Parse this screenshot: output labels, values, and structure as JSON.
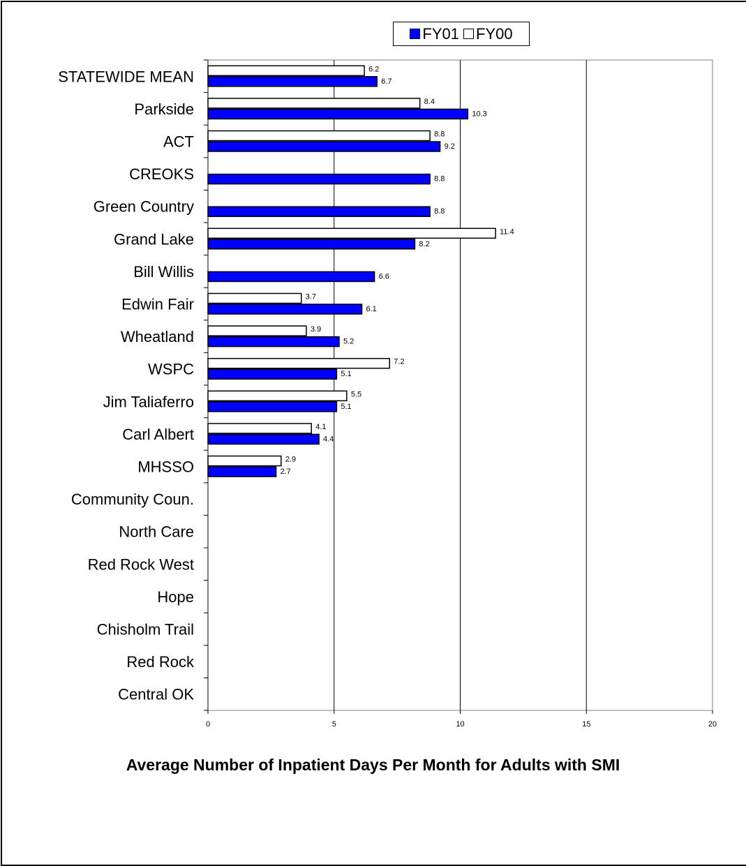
{
  "chart_data": {
    "type": "bar",
    "orientation": "horizontal",
    "title": "Average Number of Inpatient Days Per Month for Adults with SMI",
    "categories": [
      "STATEWIDE MEAN",
      "Parkside",
      "ACT",
      "CREOKS",
      "Green Country",
      "Grand Lake",
      "Bill Willis",
      "Edwin Fair",
      "Wheatland",
      "WSPC",
      "Jim Taliaferro",
      "Carl Albert",
      "MHSSO",
      "Community Coun.",
      "North Care",
      "Red Rock West",
      "Hope",
      "Chisholm Trail",
      "Red Rock",
      "Central OK"
    ],
    "series": [
      {
        "name": "FY01",
        "color": "#0000ff",
        "values": [
          6.7,
          10.3,
          9.2,
          8.8,
          8.8,
          8.2,
          6.6,
          6.1,
          5.2,
          5.1,
          5.1,
          4.4,
          2.7,
          null,
          null,
          null,
          null,
          null,
          null,
          null
        ]
      },
      {
        "name": "FY00",
        "color": "#ffffff",
        "values": [
          6.2,
          8.4,
          8.8,
          null,
          null,
          11.4,
          null,
          3.7,
          3.9,
          7.2,
          5.5,
          4.1,
          2.9,
          null,
          null,
          null,
          null,
          null,
          null,
          null
        ]
      }
    ],
    "xlim": [
      0,
      20
    ],
    "xticks": [
      0,
      5,
      10,
      15,
      20
    ],
    "grid": "vertical",
    "legend": "top"
  }
}
